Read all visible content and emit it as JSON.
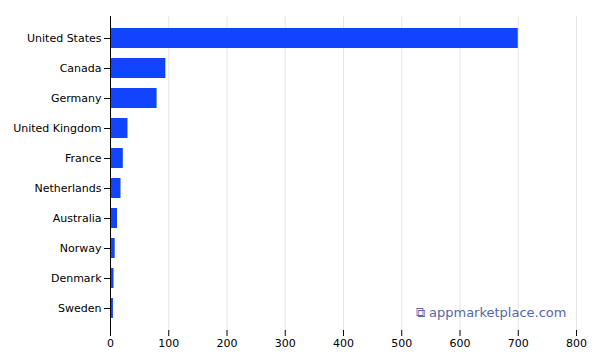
{
  "chart_data": {
    "type": "bar",
    "orientation": "horizontal",
    "categories": [
      "United States",
      "Canada",
      "Germany",
      "United Kingdom",
      "France",
      "Netherlands",
      "Australia",
      "Norway",
      "Denmark",
      "Sweden"
    ],
    "values": [
      700,
      95,
      80,
      30,
      22,
      18,
      12,
      8,
      6,
      5
    ],
    "color": "#1144ff",
    "xlim": [
      0,
      800
    ],
    "xticks": [
      0,
      100,
      200,
      300,
      400,
      500,
      600,
      700,
      800
    ],
    "grid": true,
    "annotations": [
      "⧉",
      "appmarketplace.com"
    ]
  }
}
